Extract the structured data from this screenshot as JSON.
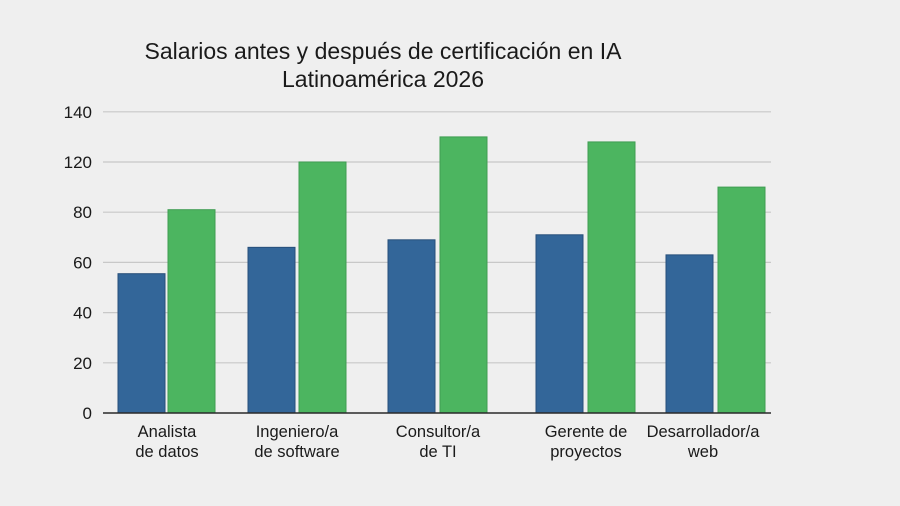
{
  "chart_data": {
    "type": "bar",
    "title": "Salarios antes y después de certificación en IA",
    "subtitle": "Latinoamérica 2026",
    "xlabel": "",
    "ylabel": "",
    "categories": [
      [
        "Analista",
        "de datos"
      ],
      [
        "Ingeniero/a",
        "de software"
      ],
      [
        "Consultor/a",
        "de TI"
      ],
      [
        "Gerente de",
        "proyectos"
      ],
      [
        "Desarrollador/a",
        "web"
      ]
    ],
    "y_ticks": [
      0,
      20,
      40,
      60,
      80,
      120,
      140
    ],
    "ylim": [
      0,
      140
    ],
    "grid": true,
    "legend": "none",
    "series": [
      {
        "name": "Antes",
        "color": "#336699",
        "values": [
          55.5,
          66,
          69,
          71,
          63
        ]
      },
      {
        "name": "Después",
        "color": "#4cb560",
        "values": [
          82,
          120,
          130,
          128,
          100
        ]
      }
    ]
  }
}
